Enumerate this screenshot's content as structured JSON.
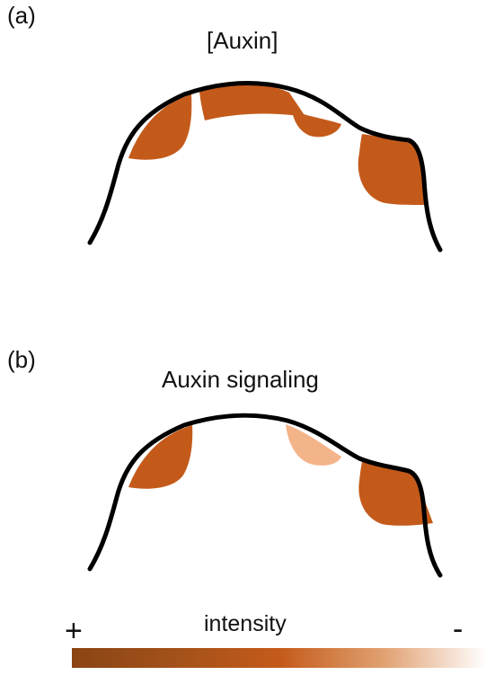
{
  "panel_a": {
    "label": "(a)",
    "title": "[Auxin]"
  },
  "panel_b": {
    "label": "(b)",
    "title": "Auxin signaling"
  },
  "legend": {
    "title": "intensity",
    "high_sign": "+",
    "low_sign": "-",
    "colors": [
      "#8a4513",
      "#c45a1a",
      "#ffffff"
    ]
  },
  "colors": {
    "dark_region": "#c45a1a",
    "light_region": "#f4b48a",
    "outline": "#000000"
  }
}
